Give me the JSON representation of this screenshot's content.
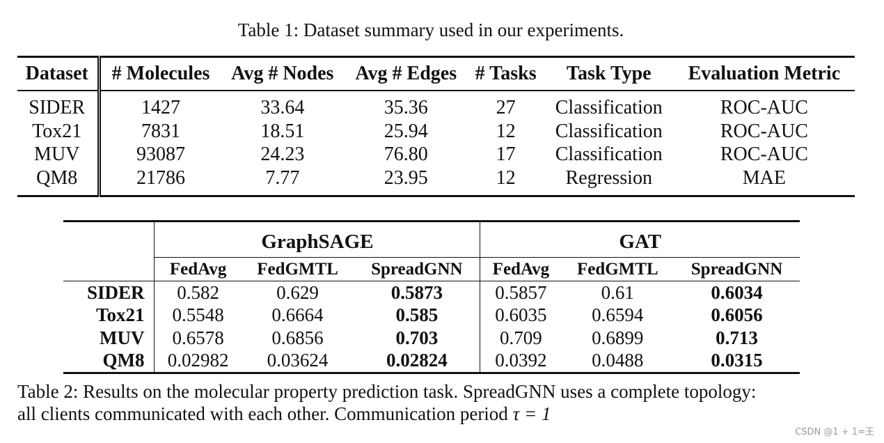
{
  "table1": {
    "caption": "Table 1: Dataset summary used in our experiments.",
    "headers": [
      "Dataset",
      "# Molecules",
      "Avg # Nodes",
      "Avg # Edges",
      "# Tasks",
      "Task Type",
      "Evaluation Metric"
    ],
    "rows": [
      [
        "SIDER",
        "1427",
        "33.64",
        "35.36",
        "27",
        "Classification",
        "ROC-AUC"
      ],
      [
        "Tox21",
        "7831",
        "18.51",
        "25.94",
        "12",
        "Classification",
        "ROC-AUC"
      ],
      [
        "MUV",
        "93087",
        "24.23",
        "76.80",
        "17",
        "Classification",
        "ROC-AUC"
      ],
      [
        "QM8",
        "21786",
        "7.77",
        "23.95",
        "12",
        "Regression",
        "MAE"
      ]
    ]
  },
  "table2": {
    "groups": [
      "GraphSAGE",
      "GAT"
    ],
    "subheaders": [
      "FedAvg",
      "FedGMTL",
      "SpreadGNN",
      "FedAvg",
      "FedGMTL",
      "SpreadGNN"
    ],
    "rows": [
      {
        "dataset": "SIDER",
        "values": [
          "0.582",
          "0.629",
          "0.5873",
          "0.5857",
          "0.61",
          "0.6034"
        ]
      },
      {
        "dataset": "Tox21",
        "values": [
          "0.5548",
          "0.6664",
          "0.585",
          "0.6035",
          "0.6594",
          "0.6056"
        ]
      },
      {
        "dataset": "MUV",
        "values": [
          "0.6578",
          "0.6856",
          "0.703",
          "0.709",
          "0.6899",
          "0.713"
        ]
      },
      {
        "dataset": "QM8",
        "values": [
          "0.02982",
          "0.03624",
          "0.02824",
          "0.0392",
          "0.0488",
          "0.0315"
        ]
      }
    ],
    "caption_line1": "Table 2: Results on the molecular property prediction task. SpreadGNN uses a complete topology:",
    "caption_line2_text": "all clients communicated with each other. Communication period ",
    "caption_line2_math": "τ = 1"
  },
  "watermark": "CSDN @1 + 1=王"
}
